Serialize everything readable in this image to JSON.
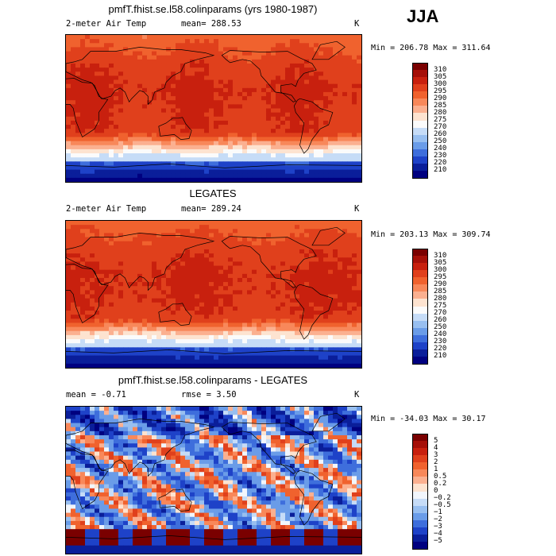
{
  "header": {
    "season": "JJA"
  },
  "panels": [
    {
      "id": "model",
      "title": "pmfT.fhist.se.l58.colinparams (yrs 1980-1987)",
      "variable": "2-meter Air Temp",
      "stat1": "mean= 288.53",
      "stat2": "",
      "unit": "K",
      "minmax": "Min = 206.78 Max = 311.64",
      "colorbar_labels": [
        "310",
        "305",
        "300",
        "295",
        "290",
        "285",
        "280",
        "275",
        "270",
        "260",
        "250",
        "240",
        "230",
        "220",
        "210"
      ]
    },
    {
      "id": "obs",
      "title": "LEGATES",
      "variable": "2-meter Air Temp",
      "stat1": "mean= 289.24",
      "stat2": "",
      "unit": "K",
      "minmax": "Min = 203.13 Max = 309.74",
      "colorbar_labels": [
        "310",
        "305",
        "300",
        "295",
        "290",
        "285",
        "280",
        "275",
        "270",
        "260",
        "250",
        "240",
        "230",
        "220",
        "210"
      ]
    },
    {
      "id": "diff",
      "title": "pmfT.fhist.se.l58.colinparams - LEGATES",
      "variable": "",
      "stat1": "mean =   -0.71",
      "stat2": "rmse =   3.50",
      "unit": "K",
      "minmax": "Min = -34.03 Max =  30.17",
      "colorbar_labels": [
        "5",
        "4",
        "3",
        "2",
        "1",
        "0.5",
        "0.2",
        "0",
        "−0.2",
        "−0.5",
        "−1",
        "−2",
        "−3",
        "−4",
        "−5"
      ]
    }
  ],
  "colors": {
    "temp_scale": [
      "#7a0000",
      "#a50f08",
      "#c8200e",
      "#e0401c",
      "#f0622e",
      "#f8885a",
      "#fbb090",
      "#fde3d0",
      "#fbfbfb",
      "#c6dcf7",
      "#98bff0",
      "#6a9ce8",
      "#3e6edc",
      "#1e42c8",
      "#0a1e9a",
      "#000080"
    ],
    "diff_scale": [
      "#7a0000",
      "#a50f08",
      "#c8200e",
      "#e0401c",
      "#f0622e",
      "#f8885a",
      "#fbb090",
      "#fde3d0",
      "#f2f6fc",
      "#c6dcf7",
      "#98bff0",
      "#6a9ce8",
      "#3e6edc",
      "#1e42c8",
      "#0a1e9a",
      "#000080"
    ]
  },
  "chart_data": [
    {
      "type": "heatmap",
      "title": "pmfT.fhist.se.l58.colinparams (yrs 1980-1987)",
      "variable": "2-meter Air Temp",
      "units": "K",
      "season": "JJA",
      "mean": 288.53,
      "min": 206.78,
      "max": 311.64,
      "contour_levels": [
        210,
        220,
        230,
        240,
        250,
        260,
        270,
        275,
        280,
        285,
        290,
        295,
        300,
        305,
        310
      ]
    },
    {
      "type": "heatmap",
      "title": "LEGATES",
      "variable": "2-meter Air Temp",
      "units": "K",
      "season": "JJA",
      "mean": 289.24,
      "min": 203.13,
      "max": 309.74,
      "contour_levels": [
        210,
        220,
        230,
        240,
        250,
        260,
        270,
        275,
        280,
        285,
        290,
        295,
        300,
        305,
        310
      ]
    },
    {
      "type": "heatmap",
      "title": "pmfT.fhist.se.l58.colinparams - LEGATES",
      "units": "K",
      "season": "JJA",
      "mean": -0.71,
      "rmse": 3.5,
      "min": -34.03,
      "max": 30.17,
      "contour_levels": [
        -5,
        -4,
        -3,
        -2,
        -1,
        -0.5,
        -0.2,
        0,
        0.2,
        0.5,
        1,
        2,
        3,
        4,
        5
      ]
    }
  ]
}
